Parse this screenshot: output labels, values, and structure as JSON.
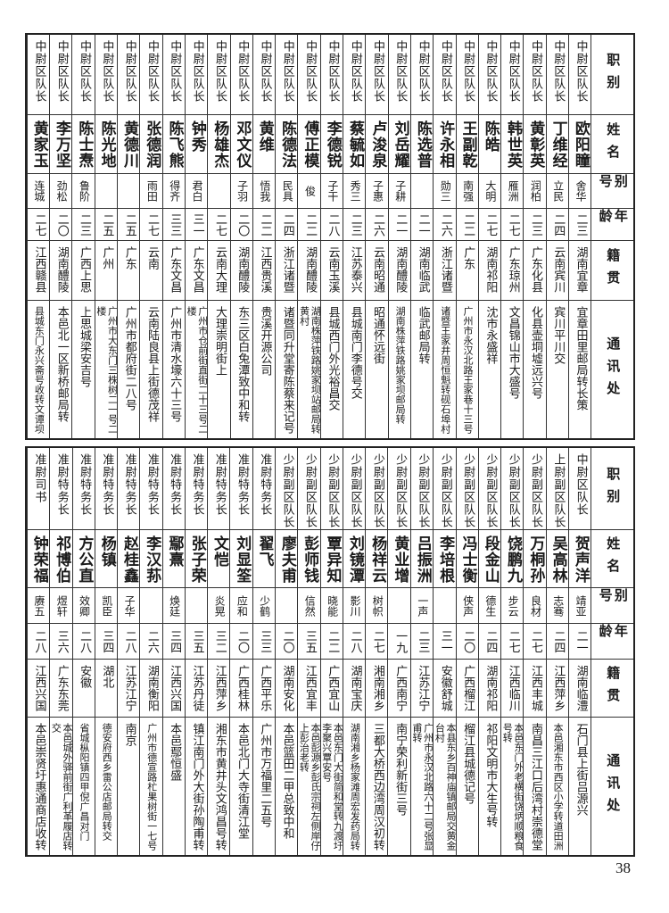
{
  "headers": [
    "职别",
    "姓名",
    "别号",
    "年龄",
    "籍贯",
    "通讯处"
  ],
  "top": [
    {
      "job": "中尉区队长",
      "name": "欧阳瞳",
      "alias": "舍华",
      "age": "二三",
      "origin": "湖南宜章",
      "address": "宜章田里邮局转长策"
    },
    {
      "job": "中尉区队长",
      "name": "丁维经",
      "alias": "立民",
      "age": "二四",
      "origin": "云南宾川",
      "address": "宾川平川交"
    },
    {
      "job": "中尉区队长",
      "name": "黄彰英",
      "alias": "润柏",
      "age": "二三",
      "origin": "广东化县",
      "address": "化县壶垌墟远兴号"
    },
    {
      "job": "中尉区队长",
      "name": "韩世英",
      "alias": "雁洲",
      "age": "二七",
      "origin": "广东琼州",
      "address": "文昌锦山市大盛号"
    },
    {
      "job": "中尉区队长",
      "name": "陈皓",
      "alias": "大明",
      "age": "二七",
      "origin": "湖南祁阳",
      "address": "沈市永盛祥"
    },
    {
      "job": "中尉区队长",
      "name": "王副乾",
      "alias": "南强",
      "age": "二二",
      "origin": "广东",
      "address": "广州市永汉北路王家巷十三号"
    },
    {
      "job": "中尉区队长",
      "name": "许永相",
      "alias": "勋三",
      "age": "二六",
      "origin": "浙江诸暨",
      "address": "诸暨王家井周恒魁转砚石埠村"
    },
    {
      "job": "中尉区队长",
      "name": "陈选普",
      "alias": "",
      "age": "二一",
      "origin": "湖南临武",
      "address": "临武邮局转"
    },
    {
      "job": "中尉区队长",
      "name": "刘岳耀",
      "alias": "子耕",
      "age": "二一",
      "origin": "湖南醴陵",
      "address": "湖南株萍铁路姚家坝邮局转"
    },
    {
      "job": "中尉区队长",
      "name": "卢浚泉",
      "alias": "子惠",
      "age": "二六",
      "origin": "云南昭通",
      "address": "昭通怀远街"
    },
    {
      "job": "中尉区队长",
      "name": "蔡毓如",
      "alias": "秀三",
      "age": "二三",
      "origin": "江苏泰兴",
      "address": "县城南门李德号交"
    },
    {
      "job": "中尉区队长",
      "name": "李德锐",
      "alias": "子干",
      "age": "二八",
      "origin": "云南玉溪",
      "address": "县城西门外光裕昌交"
    },
    {
      "job": "中尉区队长",
      "name": "傅正模",
      "alias": "俊",
      "age": "二二",
      "origin": "湖南醴陵",
      "address": "湖南株萍铁路姚家坝站邮局转黄村"
    },
    {
      "job": "中尉区队长",
      "name": "陈德法",
      "alias": "民具",
      "age": "二四",
      "origin": "浙江诸暨",
      "address": "诸暨同升堂寄陈蔡来记号"
    },
    {
      "job": "中尉区队长",
      "name": "黄维",
      "alias": "悟我",
      "age": "二二",
      "origin": "江西贵溪",
      "address": "贵溪开源公司"
    },
    {
      "job": "中尉区队长",
      "name": "邓文仪",
      "alias": "子羽",
      "age": "二〇",
      "origin": "湖南醴陵",
      "address": "东三区白兔潭致中和转"
    },
    {
      "job": "中尉区队长",
      "name": "杨雄杰",
      "alias": "",
      "age": "二七",
      "origin": "云南大理",
      "address": "大理崇明街上"
    },
    {
      "job": "中尉区队长",
      "name": "钟秀",
      "alias": "君白",
      "age": "三一",
      "origin": "广东文昌",
      "address": "广州市仓前街直街二十三号二楼"
    },
    {
      "job": "中尉区队长",
      "name": "陈飞熊",
      "alias": "得齐",
      "age": "三三",
      "origin": "广东文昌",
      "address": "广州市清水壕六十三号"
    },
    {
      "job": "中尉区队长",
      "name": "张德润",
      "alias": "雨田",
      "age": "二七",
      "origin": "云南",
      "address": "云南陆良县上街德茂祥"
    },
    {
      "job": "中尉区队长",
      "name": "黄德川",
      "alias": "",
      "age": "二五",
      "origin": "广东",
      "address": "广州市都府街二八号"
    },
    {
      "job": "中尉区队长",
      "name": "陈光地",
      "alias": "",
      "age": "二五",
      "origin": "广州",
      "address": "广州市大东门三株树二一号二楼"
    },
    {
      "job": "中尉区队长",
      "name": "陈士焘",
      "alias": "鲁阶",
      "age": "二三",
      "origin": "广西上思",
      "address": "上思城梁安吉号"
    },
    {
      "job": "中尉区队长",
      "name": "李万坚",
      "alias": "劲松",
      "age": "二〇",
      "origin": "湖南醴陵",
      "address": "本邑北一区新桥邮局转"
    },
    {
      "job": "中尉区队长",
      "name": "黄家玉",
      "alias": "连城",
      "age": "二七",
      "origin": "江西赣县",
      "address": "县城东门永兴斋号收转文谭坝"
    }
  ],
  "bottom": [
    {
      "job": "中尉区队长",
      "name": "贺声洋",
      "alias": "靖亚",
      "age": "二一",
      "origin": "湖南临澧",
      "address": "石门县上街吕源兴"
    },
    {
      "job": "上尉副区队长",
      "name": "吴高林",
      "alias": "志骞",
      "age": "二四",
      "origin": "江西萍乡",
      "address": "本邑湘东市西区小学转道田洲"
    },
    {
      "job": "少尉副区队长",
      "name": "万桐孙",
      "alias": "良材",
      "age": "二七",
      "origin": "江西丰城",
      "address": "南昌三江口后湾村崇德堂"
    },
    {
      "job": "少尉副区队长",
      "name": "饶鹏九",
      "alias": "步云",
      "age": "二七",
      "origin": "江西临川",
      "address": "本邑东门外老横街饶炳顺粮食号转"
    },
    {
      "job": "少尉副区队长",
      "name": "段金山",
      "alias": "德生",
      "age": "二四",
      "origin": "湖南祁阳",
      "address": "祁阳文明市大生号转"
    },
    {
      "job": "少尉副区队长",
      "name": "冯士衡",
      "alias": "侠声",
      "age": "二〇",
      "origin": "广西榴江",
      "address": "榴江县城德记号"
    },
    {
      "job": "少尉副区队长",
      "name": "李培根",
      "alias": "",
      "age": "三一",
      "origin": "安徽舒城",
      "address": "本县东乡百神庙镇邮局交黄金台村"
    },
    {
      "job": "少尉副区队长",
      "name": "吕振洲",
      "alias": "一声",
      "age": "二三",
      "origin": "江苏江宁",
      "address": "广州市永汉北路六十二号张显甫转"
    },
    {
      "job": "少尉副区队长",
      "name": "黄业增",
      "alias": "",
      "age": "一九",
      "origin": "广西南宁",
      "address": "南宁荣利新街三号"
    },
    {
      "job": "少尉副区队长",
      "name": "杨祥云",
      "alias": "树帜",
      "age": "二七",
      "origin": "湘南湘乡",
      "address": "三都大桥西边湾周汉初转"
    },
    {
      "job": "少尉副区队长",
      "name": "刘镜潭",
      "alias": "影川",
      "age": "二八",
      "origin": "湖南宝庆",
      "address": "湖南湘乡杨家滩周宏发药局转"
    },
    {
      "job": "少尉副区队长",
      "name": "覃异知",
      "alias": "晓能",
      "age": "二二",
      "origin": "广西宜山",
      "address": "本邑东门大街简和堂转九渡圩李聚兴覃安号"
    },
    {
      "job": "少尉副区队长",
      "name": "彭师钱",
      "alias": "信然",
      "age": "三五",
      "origin": "江西宜丰",
      "address": "本邑彭源乡彭氏宗祠左侧岸仔上彭治老转"
    },
    {
      "job": "少尉副区队长",
      "name": "廖夫甫",
      "alias": "",
      "age": "二〇",
      "origin": "湖南安化",
      "address": "本邑篮田二甲总致中和"
    },
    {
      "job": "准尉特务长",
      "name": "翟飞",
      "alias": "少鹤",
      "age": "三三",
      "origin": "广西平乐",
      "address": "广州市万福里二五号"
    },
    {
      "job": "准尉特务长",
      "name": "刘显筌",
      "alias": "应和",
      "age": "二〇",
      "origin": "广西桂林",
      "address": "本邑北门大寺街清江堂"
    },
    {
      "job": "准尉特务长",
      "name": "文恺",
      "alias": "炎晃",
      "age": "三二",
      "origin": "江西萍乡",
      "address": "湘东市黄井头文鸿昌号转"
    },
    {
      "job": "准尉特务长",
      "name": "张子荣",
      "alias": "",
      "age": "三五",
      "origin": "江苏丹徒",
      "address": "镇江南门外大街孙陶甫转"
    },
    {
      "job": "准尉特务长",
      "name": "鄢熹",
      "alias": "焕廷",
      "age": "三四",
      "origin": "江西兴国",
      "address": "本邑鄢恒盛"
    },
    {
      "job": "准尉特务长",
      "name": "李汉荪",
      "alias": "",
      "age": "二六",
      "origin": "湖南衡阳",
      "address": "广州市德宣路杧果树街一七号"
    },
    {
      "job": "准尉特务长",
      "name": "赵桂鑫",
      "alias": "子华",
      "age": "二八",
      "origin": "江苏江宁",
      "address": "南京"
    },
    {
      "job": "准尉特务长",
      "name": "杨镇",
      "alias": "凯臣",
      "age": "三四",
      "origin": "湖北",
      "address": "德安府西乡雷公店邮局转交"
    },
    {
      "job": "准尉特务长",
      "name": "方公直",
      "alias": "效卿",
      "age": "二八",
      "origin": "安徽",
      "address": "省城枞阳镇四甲倪广昌对门"
    },
    {
      "job": "准尉特务长",
      "name": "祁博伯",
      "alias": "煜轩",
      "age": "三六",
      "origin": "广东东莞",
      "address": "本邑城外驿前街广利革履店转交"
    },
    {
      "job": "准尉司书",
      "name": "钟荣福",
      "alias": "赓五",
      "age": "二八",
      "origin": "江西兴国",
      "address": "本邑崇贤圩惠通商店收转"
    }
  ],
  "page_number": "38"
}
